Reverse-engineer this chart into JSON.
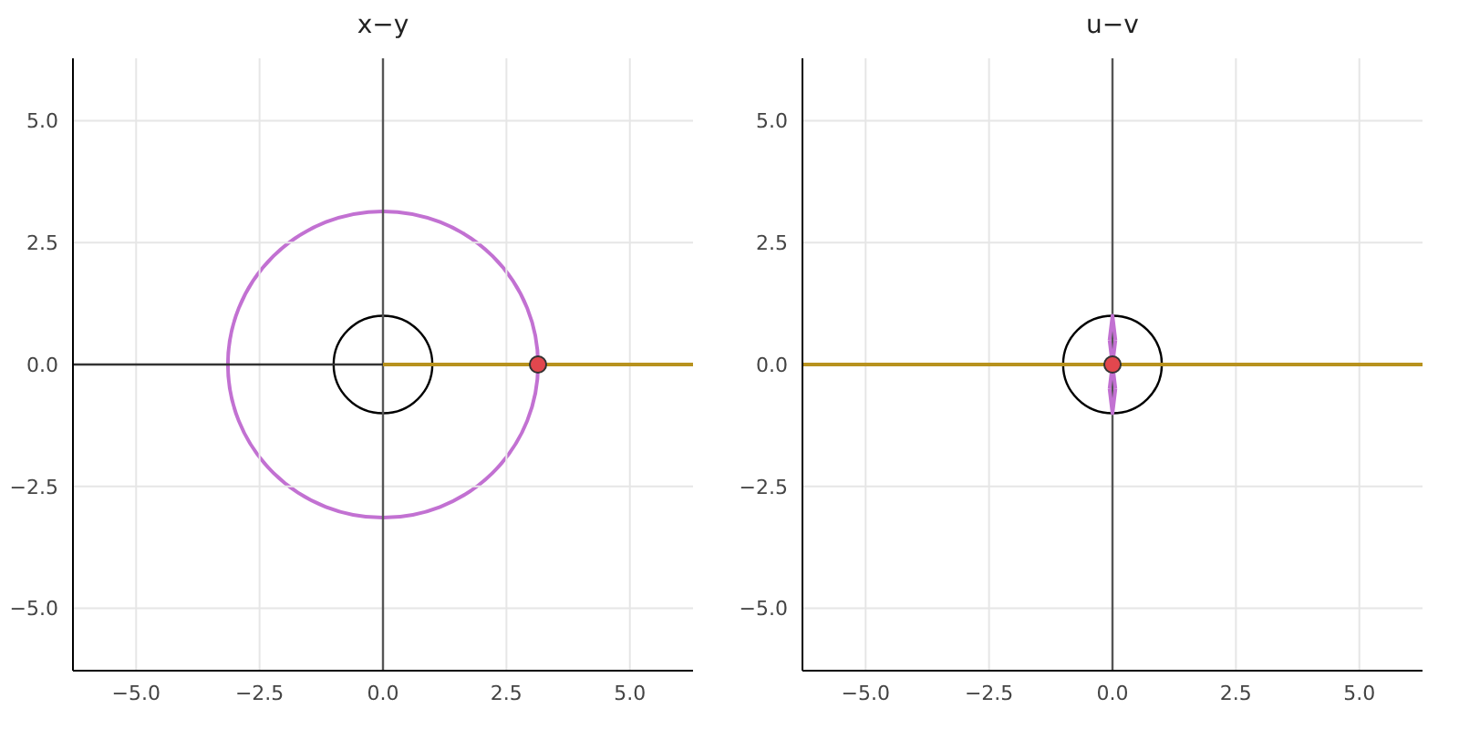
{
  "chart_data": [
    {
      "type": "line",
      "title": "x−y",
      "xlim": [
        -6.28,
        6.28
      ],
      "ylim": [
        -6.28,
        6.28
      ],
      "xticks": [
        {
          "value": -5,
          "label": "−5.0"
        },
        {
          "value": -2.5,
          "label": "−2.5"
        },
        {
          "value": 0,
          "label": "0.0"
        },
        {
          "value": 2.5,
          "label": "2.5"
        },
        {
          "value": 5,
          "label": "5.0"
        }
      ],
      "yticks": [
        {
          "value": -5,
          "label": "−5.0"
        },
        {
          "value": -2.5,
          "label": "−2.5"
        },
        {
          "value": 0,
          "label": "0.0"
        },
        {
          "value": 2.5,
          "label": "2.5"
        },
        {
          "value": 5,
          "label": "5.0"
        }
      ],
      "grid": true,
      "ref_lines": [
        {
          "axis": "x",
          "value": 0,
          "color": "#555555"
        },
        {
          "axis": "y",
          "value": 0,
          "color": "#333333"
        }
      ],
      "series": [
        {
          "color": "#b8921e",
          "x": [
            0,
            6.28
          ],
          "values": [
            0,
            0
          ]
        },
        {
          "type": "scatter",
          "color": "#e2474e",
          "marker": "circle",
          "x": [
            3.14
          ],
          "values": [
            0
          ]
        }
      ]
    },
    {
      "type": "line",
      "title": "u−v",
      "xlim": [
        -6.28,
        6.28
      ],
      "ylim": [
        -6.28,
        6.28
      ],
      "xticks": [
        {
          "value": -5,
          "label": "−5.0"
        },
        {
          "value": -2.5,
          "label": "−2.5"
        },
        {
          "value": 0,
          "label": "0.0"
        },
        {
          "value": 2.5,
          "label": "2.5"
        },
        {
          "value": 5,
          "label": "5.0"
        }
      ],
      "yticks": [
        {
          "value": -5,
          "label": "−5.0"
        },
        {
          "value": -2.5,
          "label": "−2.5"
        },
        {
          "value": 0,
          "label": "0.0"
        },
        {
          "value": 2.5,
          "label": "2.5"
        },
        {
          "value": 5,
          "label": "5.0"
        }
      ],
      "grid": true,
      "ref_lines": [
        {
          "axis": "x",
          "value": 0,
          "color": "#555555"
        }
      ],
      "series": [
        {
          "color": "#c271d2",
          "x": [
            -0.06,
            0,
            0.06
          ],
          "values": [
            0.5,
            1,
            0.5
          ]
        },
        {
          "color": "#c271d2",
          "x": [
            -0.06,
            0,
            0.06
          ],
          "values": [
            0.5,
            0,
            0.5
          ]
        },
        {
          "color": "#c271d2",
          "x": [
            -0.06,
            0,
            0.06
          ],
          "values": [
            -0.5,
            0,
            -0.5
          ]
        },
        {
          "color": "#c271d2",
          "x": [
            -0.06,
            0,
            0.06
          ],
          "values": [
            -0.5,
            -1,
            -0.5
          ]
        },
        {
          "color": "#b8921e",
          "x": [
            -6.28,
            6.28
          ],
          "values": [
            0,
            0
          ]
        },
        {
          "type": "scatter",
          "color": "#e2474e",
          "marker": "circle",
          "x": [
            0
          ],
          "values": [
            0
          ]
        }
      ]
    }
  ]
}
